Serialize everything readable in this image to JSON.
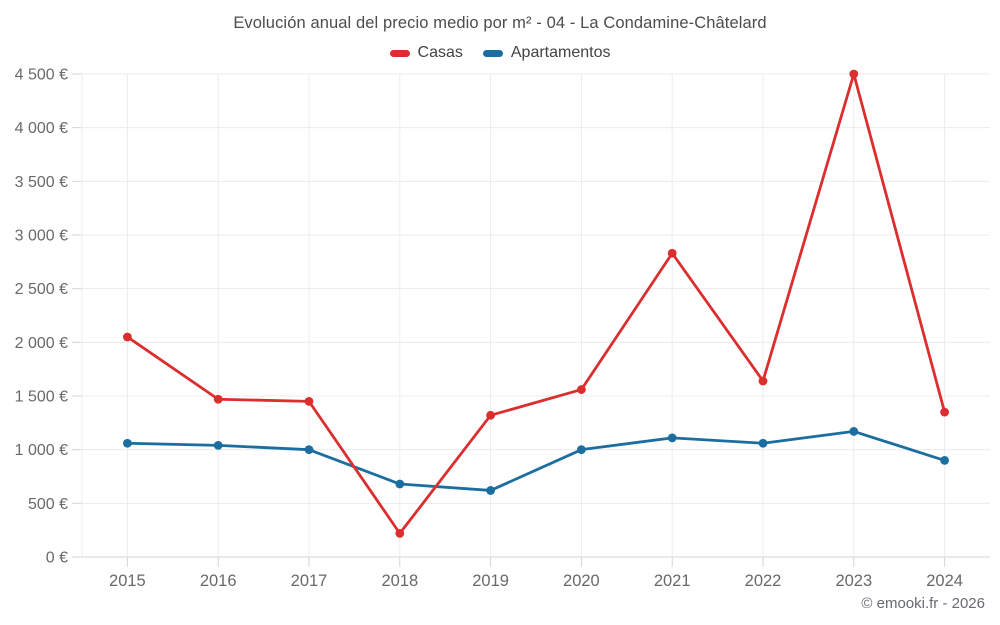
{
  "chart_data": {
    "type": "line",
    "title": "Evolución anual del precio medio por m² - 04 - La Condamine-Châtelard",
    "categories": [
      "2015",
      "2016",
      "2017",
      "2018",
      "2019",
      "2020",
      "2021",
      "2022",
      "2023",
      "2024"
    ],
    "series": [
      {
        "name": "Casas",
        "color": "#dc2e2e",
        "values": [
          2050,
          1470,
          1450,
          220,
          1320,
          1560,
          2830,
          1640,
          4500,
          1350
        ]
      },
      {
        "name": "Apartamentos",
        "color": "#1b6e9f",
        "values": [
          1060,
          1040,
          1000,
          680,
          620,
          1000,
          1110,
          1060,
          1170,
          900
        ]
      }
    ],
    "ylim": [
      0,
      4500
    ],
    "ytick_step": 500,
    "y_suffix": " €",
    "grid": true,
    "legend_position": "top",
    "colors": {
      "grid_line": "#ececec",
      "axis_line": "#d6d6d6",
      "tick_label": "#696969"
    }
  },
  "footer": {
    "copyright": "© emooki.fr - 2026"
  }
}
